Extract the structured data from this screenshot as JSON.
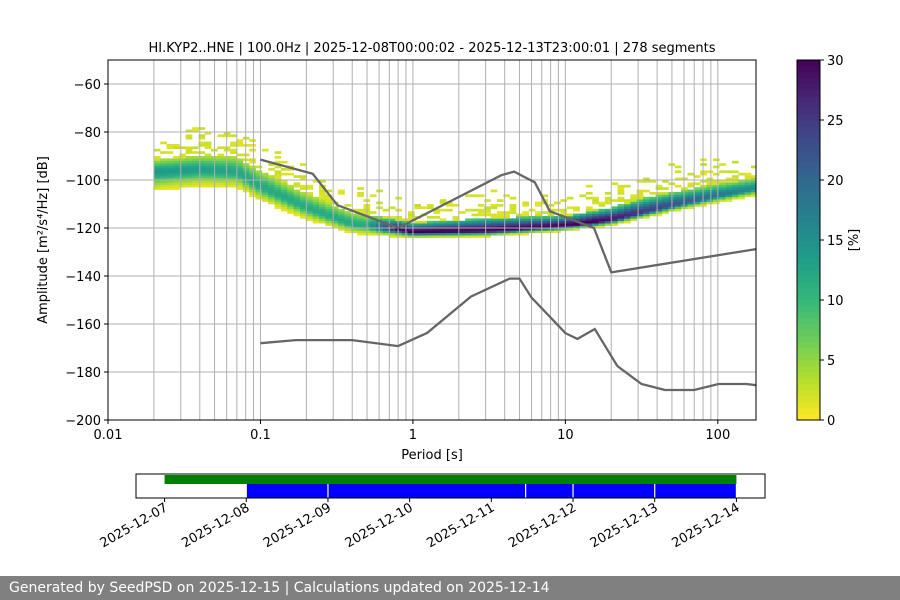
{
  "chart_data": {
    "type": "heatmap",
    "title": "HI.KYP2..HNE | 100.0Hz | 2025-12-08T00:00:02 - 2025-12-13T23:00:01 | 278 segments",
    "xlabel": "Period [s]",
    "ylabel": "Amplitude [m²/s⁴/Hz] [dB]",
    "xscale": "log",
    "xlim": [
      0.01,
      178
    ],
    "ylim": [
      -200,
      -50
    ],
    "xticks": [
      {
        "v": 0.01,
        "label": "0.01"
      },
      {
        "v": 0.1,
        "label": "0.1"
      },
      {
        "v": 1,
        "label": "1"
      },
      {
        "v": 10,
        "label": "10"
      },
      {
        "v": 100,
        "label": "100"
      }
    ],
    "yticks": [
      -200,
      -180,
      -160,
      -140,
      -120,
      -100,
      -80,
      -60
    ],
    "grid": true,
    "histogram": {
      "period_range": [
        0.02,
        178
      ],
      "mode_db": [
        [
          0.02,
          -97
        ],
        [
          0.04,
          -96
        ],
        [
          0.07,
          -97
        ],
        [
          0.1,
          -103
        ],
        [
          0.2,
          -112
        ],
        [
          0.4,
          -119
        ],
        [
          0.8,
          -121
        ],
        [
          1,
          -122
        ],
        [
          3.2,
          -121.5
        ],
        [
          10,
          -119.5
        ],
        [
          20,
          -117
        ],
        [
          50,
          -111
        ],
        [
          100,
          -107
        ],
        [
          178,
          -104
        ]
      ],
      "peak_percent": [
        [
          0.02,
          14
        ],
        [
          0.1,
          12
        ],
        [
          0.5,
          12
        ],
        [
          0.8,
          30
        ],
        [
          16,
          30
        ],
        [
          32,
          25
        ],
        [
          178,
          15
        ]
      ],
      "spread_above_db": [
        [
          0.02,
          12
        ],
        [
          0.1,
          16
        ],
        [
          0.5,
          12
        ],
        [
          1,
          9
        ],
        [
          3.2,
          13
        ],
        [
          10,
          10
        ],
        [
          32,
          14
        ],
        [
          178,
          11
        ]
      ],
      "spread_below_db": [
        [
          0.02,
          8
        ],
        [
          0.1,
          6
        ],
        [
          0.3,
          4
        ],
        [
          1,
          2
        ],
        [
          10,
          1.5
        ],
        [
          178,
          2.5
        ]
      ]
    },
    "noise_models": [
      {
        "name": "NHNM",
        "points": [
          [
            0.1,
            -91.5
          ],
          [
            0.22,
            -97.4
          ],
          [
            0.32,
            -110.5
          ],
          [
            0.8,
            -120
          ],
          [
            3.8,
            -98
          ],
          [
            4.6,
            -96.5
          ],
          [
            6.3,
            -101
          ],
          [
            7.9,
            -113
          ],
          [
            15.4,
            -120
          ],
          [
            20,
            -138.5
          ],
          [
            178,
            -128.8
          ]
        ]
      },
      {
        "name": "NLNM",
        "points": [
          [
            0.1,
            -168
          ],
          [
            0.17,
            -166.7
          ],
          [
            0.4,
            -166.7
          ],
          [
            0.8,
            -169.2
          ],
          [
            1.24,
            -163.7
          ],
          [
            2.4,
            -148.6
          ],
          [
            4.3,
            -141.1
          ],
          [
            5,
            -141.1
          ],
          [
            6,
            -149
          ],
          [
            10,
            -163.8
          ],
          [
            12,
            -166.2
          ],
          [
            15.6,
            -162.1
          ],
          [
            21.9,
            -177.5
          ],
          [
            31.6,
            -185
          ],
          [
            45,
            -187.5
          ],
          [
            70,
            -187.5
          ],
          [
            101,
            -185
          ],
          [
            154,
            -185
          ],
          [
            178,
            -185.5
          ]
        ]
      }
    ],
    "colorbar": {
      "label": "[%]",
      "range": [
        0,
        30
      ],
      "ticks": [
        0,
        5,
        10,
        15,
        20,
        25,
        30
      ],
      "cmap": "viridis_r"
    },
    "timeline": {
      "dates": [
        "2025-12-07",
        "2025-12-08",
        "2025-12-09",
        "2025-12-10",
        "2025-12-11",
        "2025-12-12",
        "2025-12-13",
        "2025-12-14"
      ],
      "range_days": [
        -0.35,
        7.35
      ],
      "green": [
        [
          0,
          7
        ]
      ],
      "blue": [
        [
          1,
          2
        ],
        [
          2,
          4.42
        ],
        [
          4.42,
          5
        ],
        [
          5,
          6
        ],
        [
          6,
          7
        ]
      ],
      "green_color": "#008000",
      "blue_color": "#0000ff"
    }
  },
  "footer": "Generated by SeedPSD on 2025-12-15 | Calculations updated on 2025-12-14"
}
